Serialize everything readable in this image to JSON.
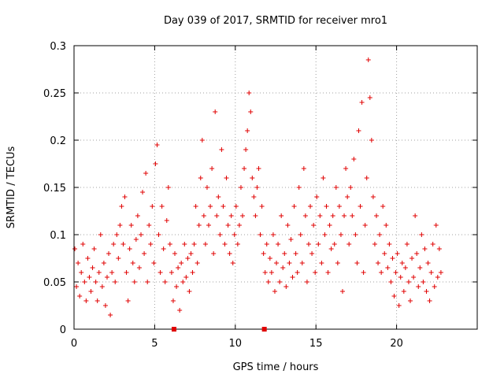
{
  "chart_data": {
    "type": "scatter",
    "title": "Day 039 of 2017, SRMTID for receiver mro1",
    "xlabel": "GPS time / hours",
    "ylabel": "SRMTID / TECUs",
    "xlim": [
      0,
      25
    ],
    "ylim": [
      0,
      0.3
    ],
    "x_ticks": [
      {
        "value": 0,
        "label": "0"
      },
      {
        "value": 5,
        "label": "5"
      },
      {
        "value": 10,
        "label": "10"
      },
      {
        "value": 15,
        "label": "15"
      },
      {
        "value": 20,
        "label": "20"
      }
    ],
    "y_ticks": [
      {
        "value": 0,
        "label": "0"
      },
      {
        "value": 0.05,
        "label": "0.05"
      },
      {
        "value": 0.1,
        "label": "0.1"
      },
      {
        "value": 0.15,
        "label": "0.15"
      },
      {
        "value": 0.2,
        "label": "0.2"
      },
      {
        "value": 0.25,
        "label": "0.25"
      },
      {
        "value": 0.3,
        "label": "0.3"
      }
    ],
    "grid": true,
    "marker": "+",
    "color": "#e00000",
    "series": [
      {
        "name": "SRMTID",
        "points": [
          [
            0.05,
            0.085
          ],
          [
            0.15,
            0.045
          ],
          [
            0.25,
            0.07
          ],
          [
            0.35,
            0.035
          ],
          [
            0.45,
            0.06
          ],
          [
            0.55,
            0.09
          ],
          [
            0.65,
            0.05
          ],
          [
            0.75,
            0.03
          ],
          [
            0.85,
            0.075
          ],
          [
            0.95,
            0.055
          ],
          [
            1.05,
            0.04
          ],
          [
            1.15,
            0.065
          ],
          [
            1.25,
            0.085
          ],
          [
            1.35,
            0.05
          ],
          [
            1.45,
            0.03
          ],
          [
            1.55,
            0.06
          ],
          [
            1.65,
            0.1
          ],
          [
            1.75,
            0.045
          ],
          [
            1.85,
            0.07
          ],
          [
            1.95,
            0.025
          ],
          [
            2.05,
            0.055
          ],
          [
            2.15,
            0.08
          ],
          [
            2.25,
            0.015
          ],
          [
            2.35,
            0.06
          ],
          [
            2.45,
            0.09
          ],
          [
            2.55,
            0.05
          ],
          [
            2.65,
            0.1
          ],
          [
            2.75,
            0.075
          ],
          [
            2.85,
            0.11
          ],
          [
            2.95,
            0.13
          ],
          [
            3.05,
            0.09
          ],
          [
            3.15,
            0.14
          ],
          [
            3.25,
            0.06
          ],
          [
            3.35,
            0.03
          ],
          [
            3.45,
            0.085
          ],
          [
            3.55,
            0.11
          ],
          [
            3.65,
            0.07
          ],
          [
            3.75,
            0.05
          ],
          [
            3.85,
            0.095
          ],
          [
            3.95,
            0.12
          ],
          [
            4.05,
            0.065
          ],
          [
            4.15,
            0.1
          ],
          [
            4.25,
            0.145
          ],
          [
            4.35,
            0.08
          ],
          [
            4.45,
            0.165
          ],
          [
            4.55,
            0.05
          ],
          [
            4.65,
            0.11
          ],
          [
            4.75,
            0.09
          ],
          [
            4.85,
            0.13
          ],
          [
            4.95,
            0.07
          ],
          [
            5.05,
            0.175
          ],
          [
            5.15,
            0.195
          ],
          [
            5.25,
            0.1
          ],
          [
            5.35,
            0.06
          ],
          [
            5.45,
            0.13
          ],
          [
            5.55,
            0.085
          ],
          [
            5.65,
            0.05
          ],
          [
            5.75,
            0.115
          ],
          [
            5.85,
            0.15
          ],
          [
            5.95,
            0.09
          ],
          [
            6.05,
            0.06
          ],
          [
            6.15,
            0.03
          ],
          [
            6.25,
            0.08
          ],
          [
            6.35,
            0.045
          ],
          [
            6.45,
            0.065
          ],
          [
            6.55,
            0.02
          ],
          [
            6.65,
            0.07
          ],
          [
            6.75,
            0.05
          ],
          [
            6.85,
            0.09
          ],
          [
            6.95,
            0.055
          ],
          [
            7.05,
            0.075
          ],
          [
            7.15,
            0.04
          ],
          [
            7.25,
            0.08
          ],
          [
            7.35,
            0.06
          ],
          [
            7.45,
            0.09
          ],
          [
            7.55,
            0.13
          ],
          [
            7.65,
            0.07
          ],
          [
            7.75,
            0.11
          ],
          [
            7.85,
            0.16
          ],
          [
            7.95,
            0.2
          ],
          [
            8.05,
            0.12
          ],
          [
            8.15,
            0.09
          ],
          [
            8.25,
            0.15
          ],
          [
            8.35,
            0.11
          ],
          [
            8.45,
            0.13
          ],
          [
            8.55,
            0.17
          ],
          [
            8.65,
            0.08
          ],
          [
            8.75,
            0.23
          ],
          [
            8.85,
            0.12
          ],
          [
            8.95,
            0.14
          ],
          [
            9.05,
            0.1
          ],
          [
            9.15,
            0.19
          ],
          [
            9.25,
            0.13
          ],
          [
            9.35,
            0.09
          ],
          [
            9.45,
            0.16
          ],
          [
            9.55,
            0.11
          ],
          [
            9.65,
            0.08
          ],
          [
            9.75,
            0.12
          ],
          [
            9.85,
            0.07
          ],
          [
            9.95,
            0.1
          ],
          [
            10.05,
            0.13
          ],
          [
            10.15,
            0.09
          ],
          [
            10.25,
            0.11
          ],
          [
            10.35,
            0.15
          ],
          [
            10.45,
            0.12
          ],
          [
            10.55,
            0.17
          ],
          [
            10.65,
            0.19
          ],
          [
            10.75,
            0.21
          ],
          [
            10.85,
            0.25
          ],
          [
            10.95,
            0.23
          ],
          [
            11.05,
            0.16
          ],
          [
            11.15,
            0.14
          ],
          [
            11.25,
            0.12
          ],
          [
            11.35,
            0.15
          ],
          [
            11.45,
            0.17
          ],
          [
            11.55,
            0.1
          ],
          [
            11.65,
            0.13
          ],
          [
            11.75,
            0.08
          ],
          [
            11.85,
            0.06
          ],
          [
            11.95,
            0.09
          ],
          [
            12.05,
            0.05
          ],
          [
            12.15,
            0.075
          ],
          [
            12.25,
            0.06
          ],
          [
            12.35,
            0.1
          ],
          [
            12.45,
            0.04
          ],
          [
            12.55,
            0.07
          ],
          [
            12.65,
            0.09
          ],
          [
            12.75,
            0.05
          ],
          [
            12.85,
            0.12
          ],
          [
            12.95,
            0.065
          ],
          [
            13.05,
            0.08
          ],
          [
            13.15,
            0.045
          ],
          [
            13.25,
            0.11
          ],
          [
            13.35,
            0.07
          ],
          [
            13.45,
            0.095
          ],
          [
            13.55,
            0.055
          ],
          [
            13.65,
            0.13
          ],
          [
            13.75,
            0.08
          ],
          [
            13.85,
            0.06
          ],
          [
            13.95,
            0.15
          ],
          [
            14.05,
            0.1
          ],
          [
            14.15,
            0.07
          ],
          [
            14.25,
            0.17
          ],
          [
            14.35,
            0.12
          ],
          [
            14.45,
            0.05
          ],
          [
            14.55,
            0.09
          ],
          [
            14.65,
            0.13
          ],
          [
            14.75,
            0.08
          ],
          [
            14.85,
            0.11
          ],
          [
            14.95,
            0.06
          ],
          [
            15.05,
            0.14
          ],
          [
            15.15,
            0.09
          ],
          [
            15.25,
            0.12
          ],
          [
            15.35,
            0.07
          ],
          [
            15.45,
            0.16
          ],
          [
            15.55,
            0.1
          ],
          [
            15.65,
            0.13
          ],
          [
            15.75,
            0.06
          ],
          [
            15.85,
            0.11
          ],
          [
            15.95,
            0.085
          ],
          [
            16.05,
            0.12
          ],
          [
            16.15,
            0.09
          ],
          [
            16.25,
            0.15
          ],
          [
            16.35,
            0.07
          ],
          [
            16.45,
            0.13
          ],
          [
            16.55,
            0.1
          ],
          [
            16.65,
            0.04
          ],
          [
            16.75,
            0.12
          ],
          [
            16.85,
            0.17
          ],
          [
            16.95,
            0.14
          ],
          [
            17.05,
            0.09
          ],
          [
            17.15,
            0.15
          ],
          [
            17.25,
            0.12
          ],
          [
            17.35,
            0.18
          ],
          [
            17.45,
            0.1
          ],
          [
            17.55,
            0.07
          ],
          [
            17.65,
            0.21
          ],
          [
            17.75,
            0.13
          ],
          [
            17.85,
            0.24
          ],
          [
            17.95,
            0.06
          ],
          [
            18.05,
            0.11
          ],
          [
            18.15,
            0.16
          ],
          [
            18.25,
            0.285
          ],
          [
            18.35,
            0.245
          ],
          [
            18.45,
            0.2
          ],
          [
            18.55,
            0.14
          ],
          [
            18.65,
            0.09
          ],
          [
            18.75,
            0.12
          ],
          [
            18.85,
            0.07
          ],
          [
            18.95,
            0.1
          ],
          [
            19.05,
            0.06
          ],
          [
            19.15,
            0.13
          ],
          [
            19.25,
            0.08
          ],
          [
            19.35,
            0.11
          ],
          [
            19.45,
            0.065
          ],
          [
            19.55,
            0.09
          ],
          [
            19.65,
            0.05
          ],
          [
            19.75,
            0.075
          ],
          [
            19.85,
            0.035
          ],
          [
            19.95,
            0.06
          ],
          [
            20.05,
            0.08
          ],
          [
            20.15,
            0.025
          ],
          [
            20.25,
            0.055
          ],
          [
            20.35,
            0.07
          ],
          [
            20.45,
            0.04
          ],
          [
            20.55,
            0.065
          ],
          [
            20.65,
            0.09
          ],
          [
            20.75,
            0.05
          ],
          [
            20.85,
            0.03
          ],
          [
            20.95,
            0.075
          ],
          [
            21.05,
            0.055
          ],
          [
            21.15,
            0.12
          ],
          [
            21.25,
            0.08
          ],
          [
            21.35,
            0.045
          ],
          [
            21.45,
            0.065
          ],
          [
            21.55,
            0.1
          ],
          [
            21.65,
            0.05
          ],
          [
            21.75,
            0.085
          ],
          [
            21.85,
            0.04
          ],
          [
            21.95,
            0.07
          ],
          [
            22.05,
            0.03
          ],
          [
            22.15,
            0.06
          ],
          [
            22.25,
            0.09
          ],
          [
            22.35,
            0.045
          ],
          [
            22.45,
            0.11
          ],
          [
            22.55,
            0.055
          ],
          [
            22.65,
            0.085
          ],
          [
            22.75,
            0.06
          ]
        ]
      }
    ],
    "markers_at_zero": [
      6.2,
      11.8
    ]
  }
}
